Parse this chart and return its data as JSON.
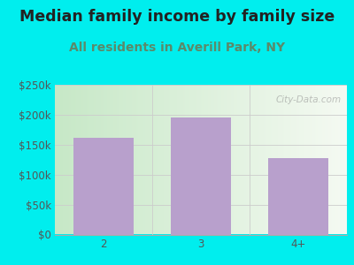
{
  "title": "Median family income by family size",
  "subtitle": "All residents in Averill Park, NY",
  "categories": [
    "2",
    "3",
    "4+"
  ],
  "values": [
    162000,
    195000,
    127000
  ],
  "bar_color": "#b8a0cc",
  "background_color": "#00eeee",
  "plot_bg_color_left": "#c8e8c8",
  "plot_bg_color_right": "#f0f5ee",
  "title_color": "#222222",
  "subtitle_color": "#5a8a6a",
  "tick_color": "#555555",
  "ylim": [
    0,
    250000
  ],
  "yticks": [
    0,
    50000,
    100000,
    150000,
    200000,
    250000
  ],
  "ytick_labels": [
    "$0",
    "$50k",
    "$100k",
    "$150k",
    "$200k",
    "$250k"
  ],
  "watermark": "City-Data.com",
  "title_fontsize": 12.5,
  "subtitle_fontsize": 10,
  "tick_fontsize": 8.5
}
